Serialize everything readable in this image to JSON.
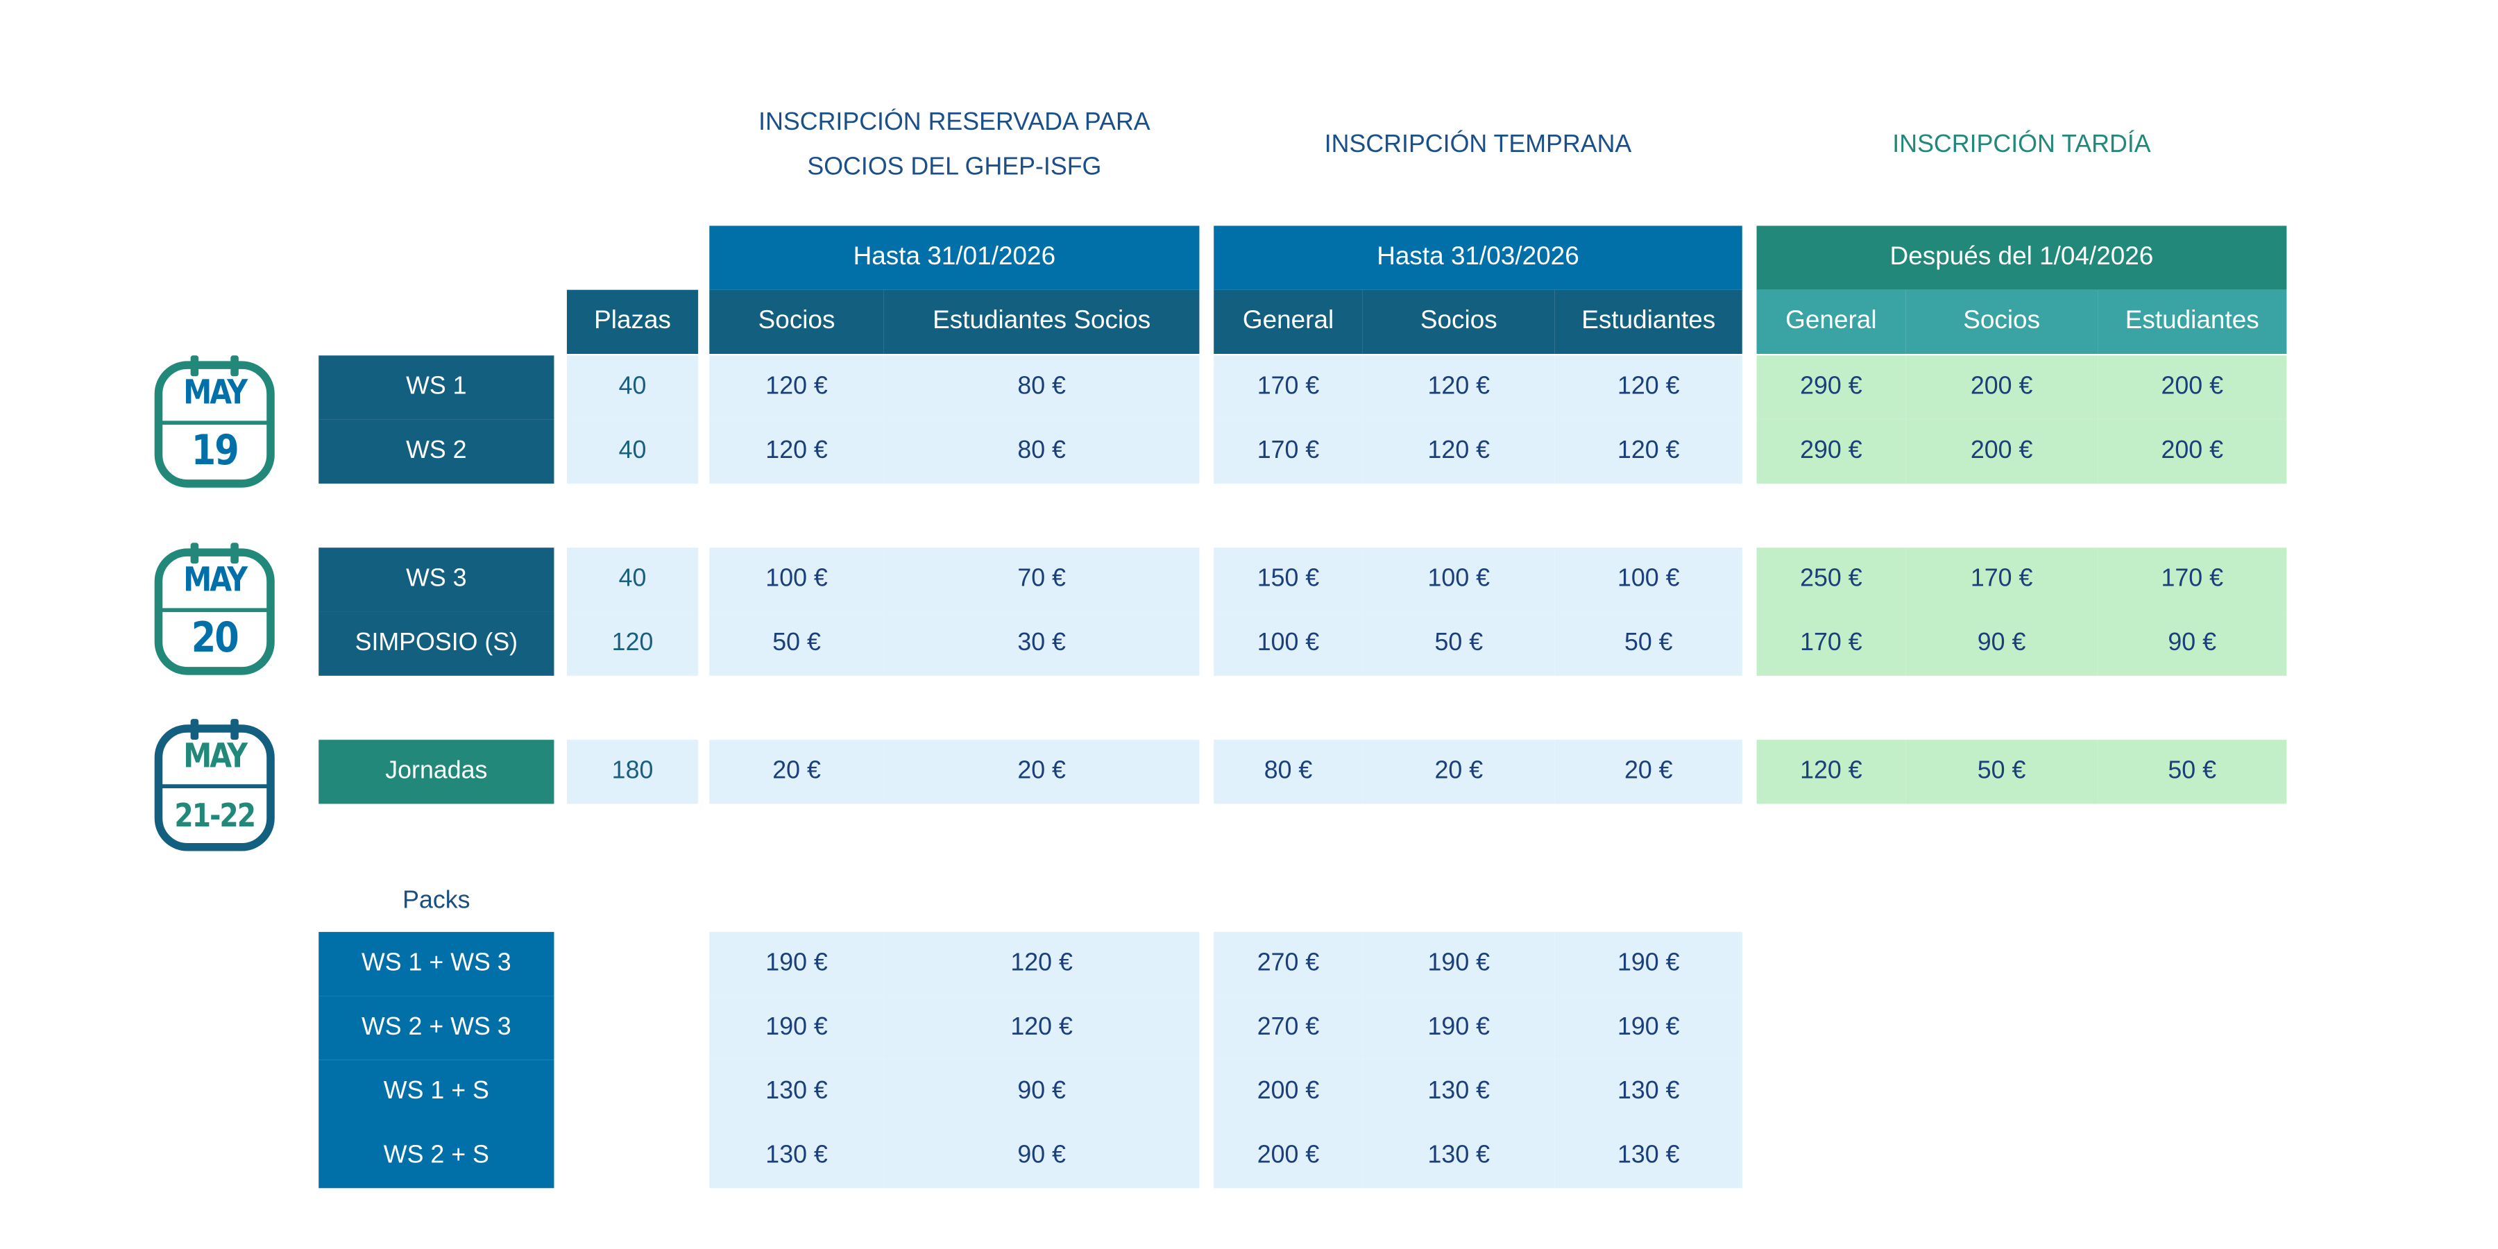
{
  "colors": {
    "dark_blue": "#125f80",
    "blue": "#0270a8",
    "teal": "#22897a",
    "teal_light": "#3aa3a3",
    "cell_blue": "#e0f1fb",
    "cell_green": "#c3efc8",
    "text": "#1a3f7a"
  },
  "sections": [
    {
      "title_lines": [
        "INSCRIPCIÓN RESERVADA PARA",
        "SOCIOS DEL GHEP-ISFG"
      ],
      "band": "Hasta 31/01/2026",
      "columns": [
        "Socios",
        "Estudiantes Socios"
      ]
    },
    {
      "title_lines": [
        "INSCRIPCIÓN TEMPRANA"
      ],
      "band": "Hasta 31/03/2026",
      "columns": [
        "General",
        "Socios",
        "Estudiantes"
      ]
    },
    {
      "title_lines": [
        "INSCRIPCIÓN TARDÍA"
      ],
      "band": "Después del 1/04/2026",
      "columns": [
        "General",
        "Socios",
        "Estudiantes"
      ]
    }
  ],
  "plazas_header": "Plazas",
  "calendars": [
    {
      "month": "MAY",
      "day": "19",
      "icon": "calendar-icon"
    },
    {
      "month": "MAY",
      "day": "20",
      "icon": "calendar-icon"
    },
    {
      "month": "MAY",
      "day": "21-22",
      "icon": "calendar-icon"
    }
  ],
  "packs_title": "Packs",
  "rows": [
    {
      "label": "WS 1",
      "plazas": "40",
      "prices": [
        "120 €",
        "80 €",
        "170 €",
        "120 €",
        "120 €",
        "290 €",
        "200 €",
        "200 €"
      ]
    },
    {
      "label": "WS 2",
      "plazas": "40",
      "prices": [
        "120 €",
        "80 €",
        "170 €",
        "120 €",
        "120 €",
        "290 €",
        "200 €",
        "200 €"
      ]
    },
    {
      "label": "WS 3",
      "plazas": "40",
      "prices": [
        "100 €",
        "70 €",
        "150 €",
        "100 €",
        "100 €",
        "250 €",
        "170 €",
        "170 €"
      ]
    },
    {
      "label": "SIMPOSIO (S)",
      "plazas": "120",
      "prices": [
        "50 €",
        "30 €",
        "100 €",
        "50 €",
        "50 €",
        "170 €",
        "90 €",
        "90 €"
      ]
    },
    {
      "label": "Jornadas",
      "plazas": "180",
      "prices": [
        "20 €",
        "20 €",
        "80 €",
        "20 €",
        "20 €",
        "120 €",
        "50 €",
        "50 €"
      ]
    }
  ],
  "packs": [
    {
      "label": "WS 1 + WS 3",
      "prices": [
        "190 €",
        "120 €",
        "270 €",
        "190 €",
        "190 €"
      ]
    },
    {
      "label": "WS 2 + WS 3",
      "prices": [
        "190 €",
        "120 €",
        "270 €",
        "190 €",
        "190 €"
      ]
    },
    {
      "label": "WS 1 + S",
      "prices": [
        "130 €",
        "90 €",
        "200 €",
        "130 €",
        "130 €"
      ]
    },
    {
      "label": "WS 2 + S",
      "prices": [
        "130 €",
        "90 €",
        "200 €",
        "130 €",
        "130 €"
      ]
    }
  ]
}
